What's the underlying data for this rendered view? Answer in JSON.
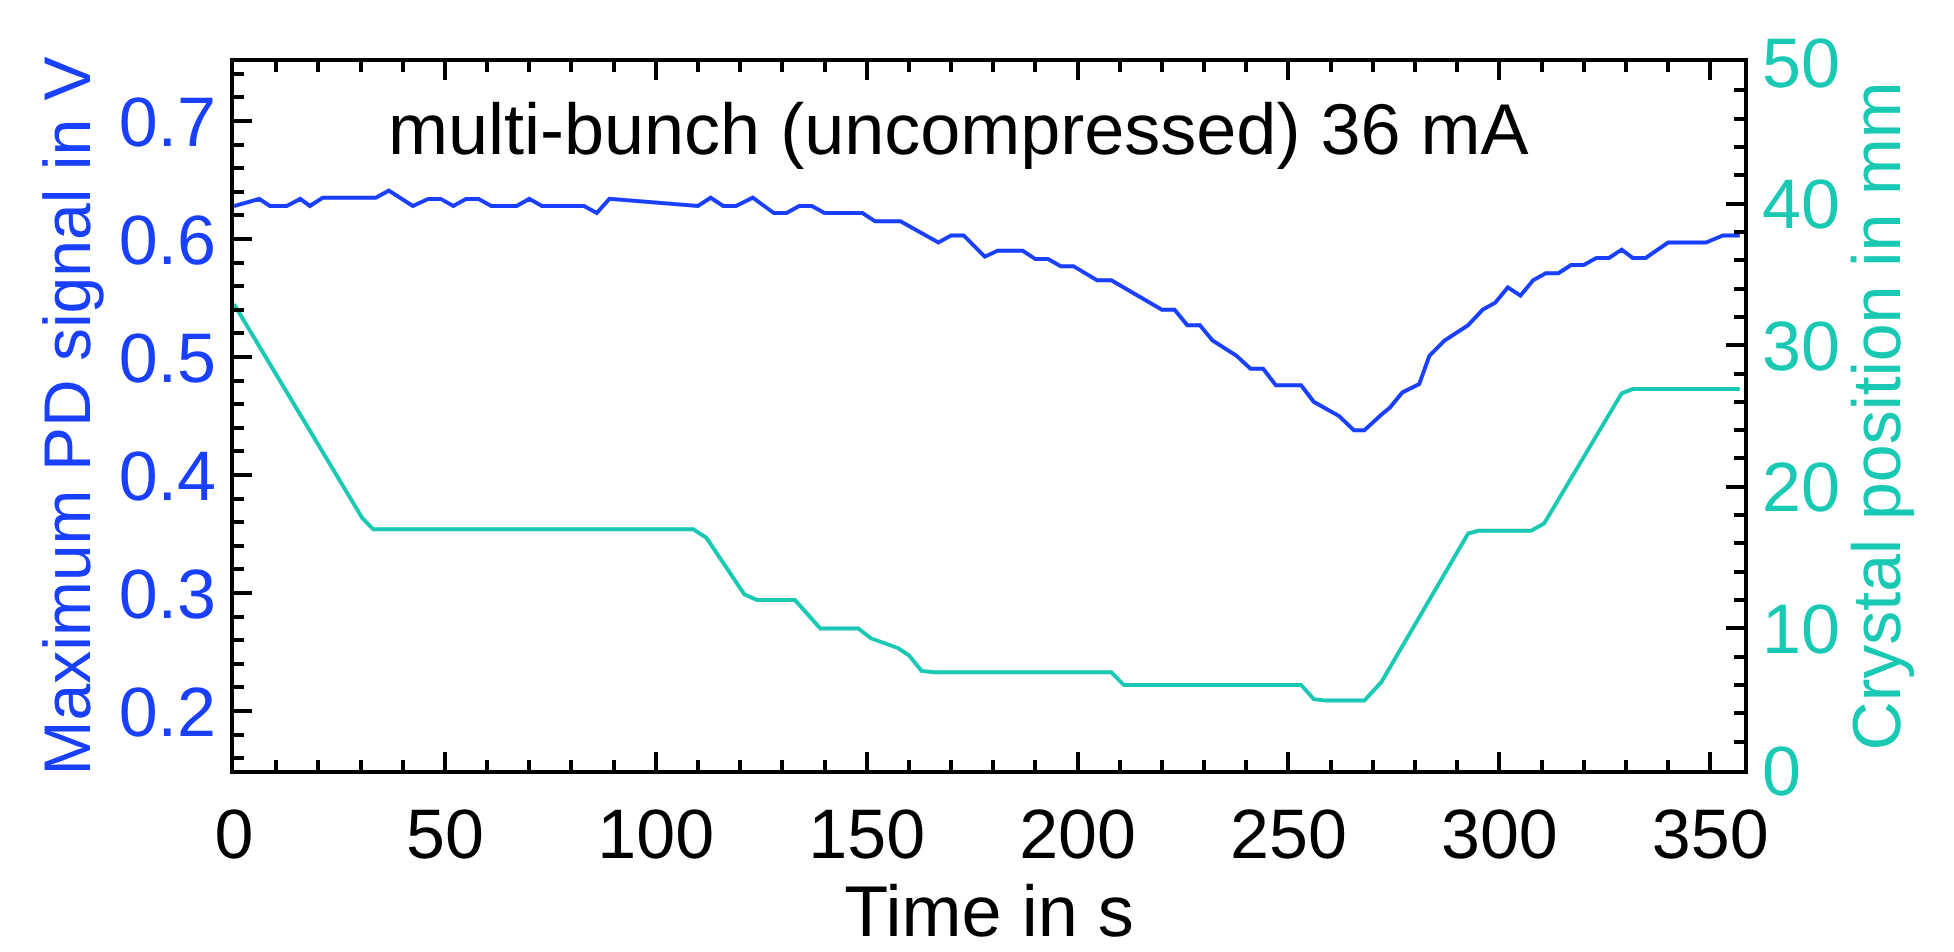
{
  "chart_data": {
    "type": "line",
    "title": "multi-bunch (uncompressed) 36 mA",
    "xlabel": "Time in s",
    "ylabel": "Maximum PD signal in V",
    "y2label": "Crystal position in mm",
    "xlim": [
      0,
      358
    ],
    "xticks": [
      0,
      50,
      100,
      150,
      200,
      250,
      300,
      350
    ],
    "ylim": [
      0.15,
      0.75
    ],
    "yticks": [
      0.2,
      0.3,
      0.4,
      0.5,
      0.6,
      0.7
    ],
    "y2lim": [
      0,
      50
    ],
    "y2ticks": [
      0,
      10,
      20,
      30,
      40,
      50
    ],
    "marker": "none",
    "line_style": "solid",
    "series": [
      {
        "color": "#1a40ff",
        "x": [
          0,
          6,
          8.5,
          12.5,
          15.7,
          18,
          21,
          33.6,
          36.7,
          42.4,
          46,
          49,
          52,
          55,
          58,
          61,
          67,
          70,
          73,
          83,
          86,
          89,
          110,
          113,
          116,
          119,
          123,
          128,
          131,
          134,
          137,
          140,
          149,
          152,
          158,
          167,
          170,
          173,
          178,
          181,
          187,
          190,
          193,
          196,
          199,
          204.6,
          208,
          220,
          223,
          226,
          229,
          232,
          237.7,
          241,
          244,
          247,
          253,
          256,
          262,
          265.5,
          268,
          272,
          274,
          277,
          281,
          283.4,
          287,
          292.6,
          296,
          299,
          302,
          305,
          308,
          311,
          314,
          317,
          320,
          323,
          326,
          329,
          331.6,
          334.7,
          340,
          349,
          353,
          357
        ],
        "values": [
          0.628,
          0.634,
          0.628,
          0.628,
          0.634,
          0.628,
          0.635,
          0.635,
          0.641,
          0.628,
          0.634,
          0.634,
          0.628,
          0.634,
          0.634,
          0.628,
          0.628,
          0.634,
          0.628,
          0.628,
          0.622,
          0.634,
          0.628,
          0.635,
          0.628,
          0.628,
          0.635,
          0.622,
          0.622,
          0.628,
          0.628,
          0.622,
          0.622,
          0.615,
          0.615,
          0.597,
          0.603,
          0.603,
          0.585,
          0.59,
          0.59,
          0.583,
          0.583,
          0.577,
          0.577,
          0.565,
          0.565,
          0.54,
          0.54,
          0.527,
          0.527,
          0.514,
          0.501,
          0.49,
          0.49,
          0.476,
          0.476,
          0.462,
          0.45,
          0.438,
          0.438,
          0.451,
          0.457,
          0.47,
          0.477,
          0.501,
          0.514,
          0.527,
          0.54,
          0.546,
          0.559,
          0.552,
          0.565,
          0.571,
          0.571,
          0.578,
          0.578,
          0.584,
          0.584,
          0.591,
          0.584,
          0.584,
          0.597,
          0.597,
          0.603,
          0.603
        ]
      },
      {
        "color": "#19c9b4",
        "axis": "y2",
        "x": [
          0,
          30.4,
          33,
          108.9,
          112,
          121,
          124,
          133,
          139,
          148,
          151,
          157.5,
          160,
          163,
          166,
          208,
          211,
          253,
          256,
          259,
          268,
          272,
          292.6,
          295,
          307.5,
          310.6,
          329,
          331.6,
          357
        ],
        "values": [
          32.9,
          17.8,
          17.0,
          17.0,
          16.4,
          12.4,
          12.0,
          12.0,
          10.0,
          10.0,
          9.3,
          8.6,
          8.1,
          7.0,
          6.9,
          6.9,
          6.0,
          6.0,
          5.0,
          4.9,
          4.9,
          6.2,
          16.7,
          16.9,
          16.9,
          17.4,
          26.6,
          26.9,
          26.9
        ]
      }
    ]
  }
}
